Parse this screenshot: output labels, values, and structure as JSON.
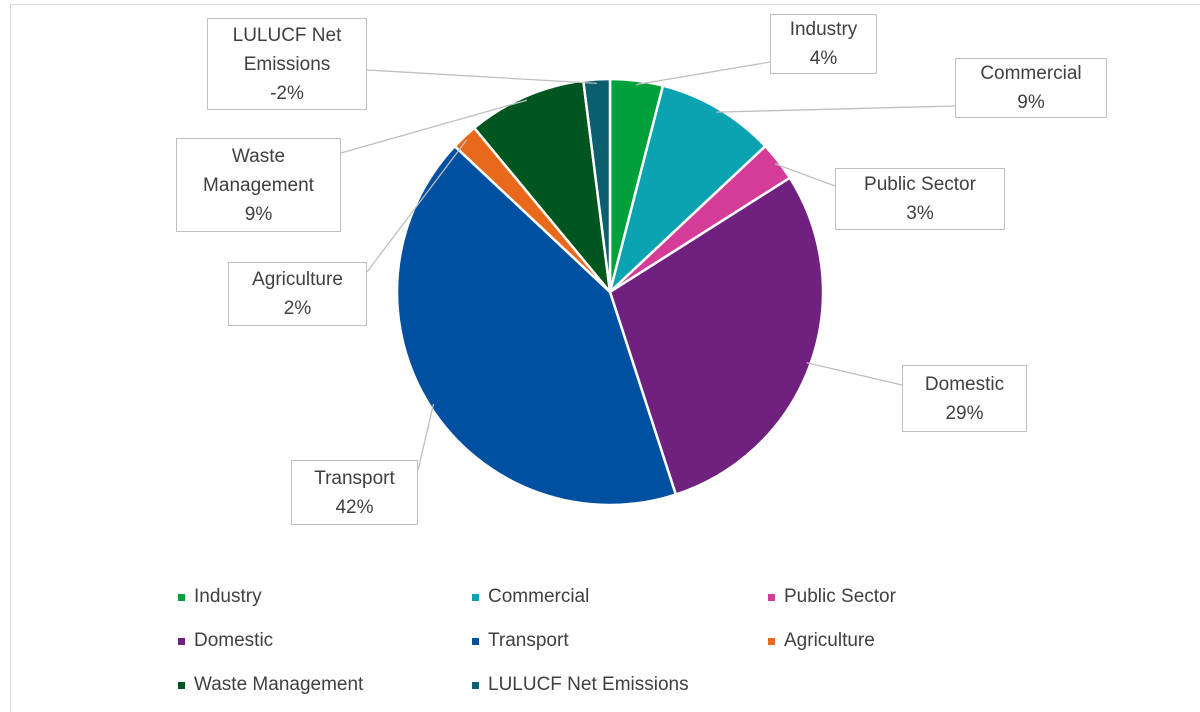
{
  "chart_data": {
    "type": "pie",
    "categories": [
      "Industry",
      "Commercial",
      "Public Sector",
      "Domestic",
      "Transport",
      "Agriculture",
      "Waste Management",
      "LULUCF Net Emissions"
    ],
    "values": [
      4,
      9,
      3,
      29,
      42,
      2,
      9,
      -2
    ],
    "value_labels": [
      "4%",
      "9%",
      "3%",
      "29%",
      "42%",
      "2%",
      "9%",
      "-2%"
    ],
    "colors": [
      "#00a13a",
      "#0ba3b1",
      "#d43c97",
      "#70217f",
      "#0050a1",
      "#e8691c",
      "#00561f",
      "#0b5e6e"
    ],
    "legend": "bottom"
  }
}
